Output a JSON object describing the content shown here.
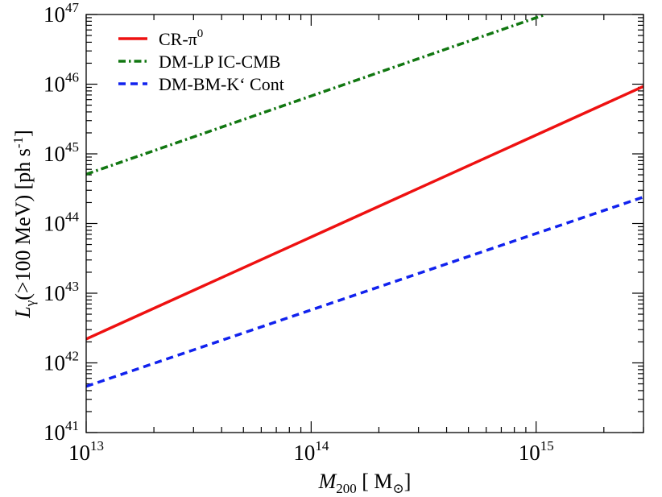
{
  "chart_data": {
    "type": "line",
    "x_scale": "log",
    "y_scale": "log",
    "xlim": [
      10000000000000.0,
      3000000000000000.0
    ],
    "ylim": [
      1e+41,
      1e+47
    ],
    "xlabel": {
      "base": "M",
      "sub": "200",
      "unit": "[ M",
      "unit_sub": "⊙",
      "close": "]"
    },
    "ylabel": {
      "base": "L",
      "sub": "γ",
      "rest": "(>100 MeV) [ph s",
      "sup": "-1",
      "close": "]"
    },
    "x_ticks": [
      {
        "value": 10000000000000.0,
        "mantissa": "10",
        "exp": "13"
      },
      {
        "value": 100000000000000.0,
        "mantissa": "10",
        "exp": "14"
      },
      {
        "value": 1000000000000000.0,
        "mantissa": "10",
        "exp": "15"
      }
    ],
    "y_ticks": [
      {
        "value": 1e+41,
        "mantissa": "10",
        "exp": "41"
      },
      {
        "value": 1e+42,
        "mantissa": "10",
        "exp": "42"
      },
      {
        "value": 1e+43,
        "mantissa": "10",
        "exp": "43"
      },
      {
        "value": 1e+44,
        "mantissa": "10",
        "exp": "44"
      },
      {
        "value": 1e+45,
        "mantissa": "10",
        "exp": "45"
      },
      {
        "value": 1e+46,
        "mantissa": "10",
        "exp": "46"
      },
      {
        "value": 1e+47,
        "mantissa": "10",
        "exp": "47"
      }
    ],
    "legend_placement": "top-left",
    "series": [
      {
        "name": "CR-π",
        "name_sup": "0",
        "color": "#ee1111",
        "style": "solid",
        "x": [
          10000000000000.0,
          3000000000000000.0
        ],
        "y": [
          2.2e+42,
          9.3e+45
        ]
      },
      {
        "name": "DM-LP IC-CMB",
        "name_sup": "",
        "color": "#117711",
        "style": "dashdot",
        "x": [
          10000000000000.0,
          1100000000000000.0
        ],
        "y": [
          5.1e+44,
          1e+47
        ]
      },
      {
        "name": "DM-BM-K‘ Cont",
        "name_sup": "",
        "color": "#1122ee",
        "style": "dashed",
        "x": [
          10000000000000.0,
          3000000000000000.0
        ],
        "y": [
          4.6e+41,
          2.4e+44
        ]
      }
    ]
  }
}
